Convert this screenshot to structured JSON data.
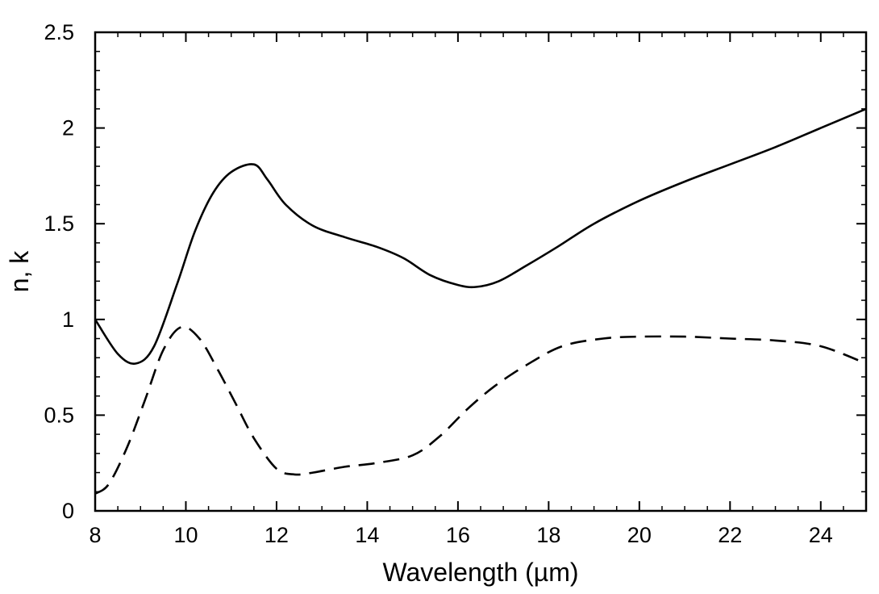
{
  "chart_data": {
    "type": "line",
    "title": "",
    "xlabel": "Wavelength (µm)",
    "ylabel": "n, k",
    "xlim": [
      8,
      25
    ],
    "ylim": [
      0,
      2.5
    ],
    "x_ticks": [
      8,
      10,
      12,
      14,
      16,
      18,
      20,
      22,
      24
    ],
    "x_tick_labels": [
      "8",
      "10",
      "12",
      "14",
      "16",
      "18",
      "20",
      "22",
      "24"
    ],
    "y_ticks": [
      0,
      0.5,
      1,
      1.5,
      2,
      2.5
    ],
    "y_tick_labels": [
      "0",
      "0.5",
      "1",
      "1.5",
      "2",
      "2.5"
    ],
    "x_minor_step": 0.5,
    "y_minor_step": 0.1,
    "grid": false,
    "series": [
      {
        "name": "n",
        "style": "solid",
        "color": "#000000",
        "x": [
          8,
          8.5,
          8.9,
          9.3,
          9.8,
          10.2,
          10.6,
          11.0,
          11.5,
          11.8,
          12.2,
          12.8,
          13.5,
          14.2,
          14.8,
          15.4,
          16.0,
          16.4,
          16.9,
          17.5,
          18.2,
          19.0,
          20.0,
          21.0,
          22.0,
          23.0,
          24.0,
          25.0
        ],
        "y": [
          1.0,
          0.82,
          0.77,
          0.86,
          1.18,
          1.46,
          1.66,
          1.77,
          1.81,
          1.73,
          1.6,
          1.49,
          1.43,
          1.38,
          1.32,
          1.23,
          1.18,
          1.17,
          1.2,
          1.28,
          1.38,
          1.5,
          1.62,
          1.72,
          1.81,
          1.9,
          2.0,
          2.1
        ]
      },
      {
        "name": "k",
        "style": "dashed",
        "color": "#000000",
        "x": [
          8,
          8.3,
          8.7,
          9.1,
          9.5,
          9.9,
          10.3,
          10.7,
          11.1,
          11.5,
          12.0,
          12.4,
          12.8,
          13.5,
          14.2,
          15.0,
          15.6,
          16.2,
          16.8,
          17.5,
          18.3,
          19.2,
          20.0,
          21.0,
          22.0,
          23.0,
          24.0,
          25.0
        ],
        "y": [
          0.09,
          0.14,
          0.33,
          0.58,
          0.84,
          0.96,
          0.9,
          0.74,
          0.56,
          0.38,
          0.22,
          0.19,
          0.2,
          0.23,
          0.25,
          0.29,
          0.39,
          0.53,
          0.65,
          0.76,
          0.86,
          0.9,
          0.91,
          0.91,
          0.9,
          0.89,
          0.86,
          0.77
        ]
      }
    ]
  }
}
